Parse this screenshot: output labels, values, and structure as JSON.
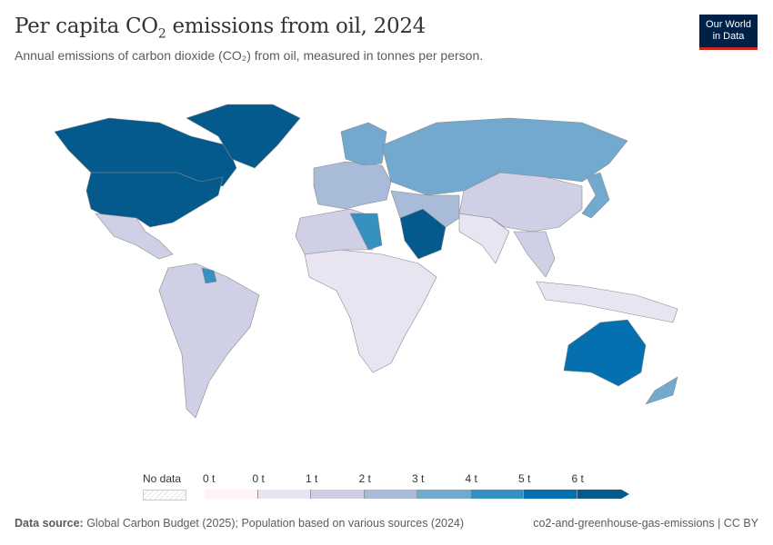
{
  "header": {
    "title_pre": "Per capita CO",
    "title_sub": "2",
    "title_post": " emissions from oil, 2024",
    "subtitle": "Annual emissions of carbon dioxide (CO₂) from oil, measured in tonnes per person.",
    "logo_line1": "Our World",
    "logo_line2": "in Data"
  },
  "legend": {
    "no_data": "No data",
    "ticks": [
      "0 t",
      "0 t",
      "1 t",
      "2 t",
      "3 t",
      "4 t",
      "5 t",
      "6 t"
    ],
    "colors": [
      "#fdf3f8",
      "#e8e4f1",
      "#cfd0e6",
      "#a8bcda",
      "#74a9cf",
      "#3690c0",
      "#0570b0",
      "#045a8d"
    ]
  },
  "regions": [
    {
      "name": "north-america-canada",
      "color": "#045a8d"
    },
    {
      "name": "greenland",
      "color": "#045a8d"
    },
    {
      "name": "usa",
      "color": "#045a8d"
    },
    {
      "name": "mexico-central",
      "color": "#cfd0e6"
    },
    {
      "name": "south-america",
      "color": "#cfd0e6"
    },
    {
      "name": "guyana",
      "color": "#3690c0"
    },
    {
      "name": "europe",
      "color": "#a8bcda"
    },
    {
      "name": "scandinavia",
      "color": "#74a9cf"
    },
    {
      "name": "russia-kazakhstan",
      "color": "#74a9cf"
    },
    {
      "name": "africa",
      "color": "#e8e4f1"
    },
    {
      "name": "north-africa",
      "color": "#cfd0e6"
    },
    {
      "name": "libya",
      "color": "#3690c0"
    },
    {
      "name": "saudi-arabia",
      "color": "#045a8d"
    },
    {
      "name": "iran-middle-east",
      "color": "#a8bcda"
    },
    {
      "name": "south-asia",
      "color": "#e8e4f1"
    },
    {
      "name": "china-mongolia",
      "color": "#cfd0e6"
    },
    {
      "name": "japan-korea",
      "color": "#74a9cf"
    },
    {
      "name": "southeast-asia",
      "color": "#cfd0e6"
    },
    {
      "name": "indonesia-png",
      "color": "#e8e4f1"
    },
    {
      "name": "australia",
      "color": "#0570b0"
    },
    {
      "name": "new-zealand",
      "color": "#74a9cf"
    }
  ],
  "footer": {
    "source_label": "Data source:",
    "source": " Global Carbon Budget (2025); Population based on various sources (2024)",
    "slug": "co2-and-greenhouse-gas-emissions | CC BY"
  }
}
